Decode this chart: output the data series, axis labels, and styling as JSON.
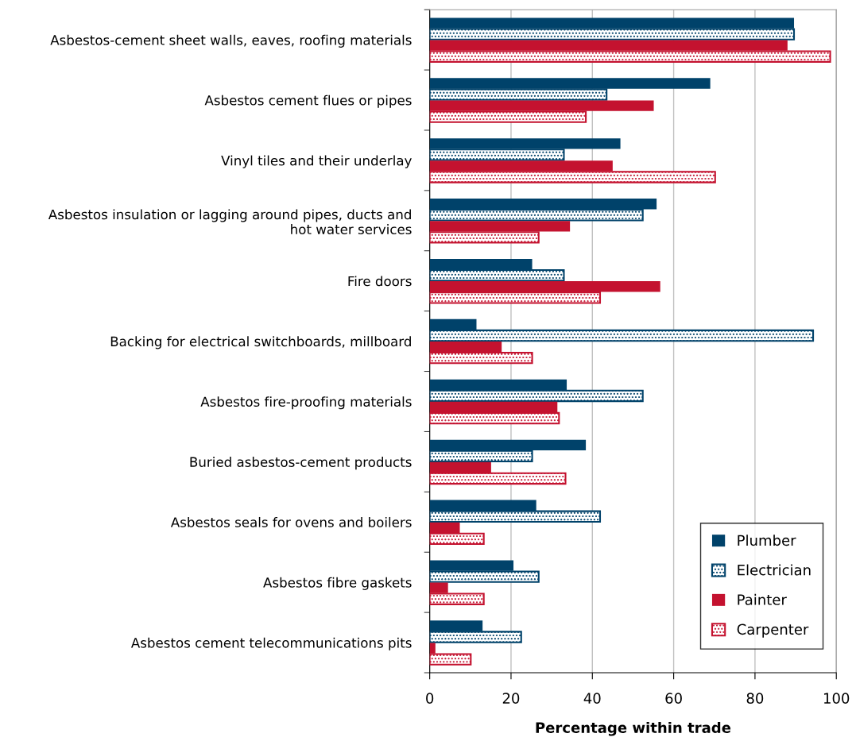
{
  "chart_data": {
    "type": "bar",
    "orientation": "horizontal",
    "xlabel": "Percentage within trade",
    "categories": [
      "Asbestos-cement sheet walls, eaves, roofing materials",
      "Asbestos cement flues or pipes",
      "Vinyl tiles and their underlay",
      "Asbestos insulation or lagging around pipes, ducts and\nhot water services",
      "Fire doors",
      "Backing for electrical switchboards, millboard",
      "Asbestos fire-proofing materials",
      "Buried asbestos-cement products",
      "Asbestos seals for ovens and boilers",
      "Asbestos fibre gaskets",
      "Asbestos cement telecommunications pits"
    ],
    "series": [
      {
        "name": "Plumber",
        "color": "#00426a",
        "values": [
          89.6,
          69.0,
          46.9,
          55.8,
          25.2,
          11.5,
          33.7,
          38.4,
          26.2,
          20.6,
          13.0
        ]
      },
      {
        "name": "Electrician",
        "color": "#00426a",
        "values": [
          89.6,
          43.5,
          33.0,
          52.4,
          33.0,
          94.3,
          52.4,
          25.2,
          41.9,
          26.8,
          22.5
        ]
      },
      {
        "name": "Painter",
        "color": "#c4122f",
        "values": [
          88.0,
          55.1,
          45.0,
          34.5,
          56.7,
          17.7,
          31.4,
          15.1,
          7.4,
          4.5,
          1.4
        ]
      },
      {
        "name": "Carpenter",
        "color": "#c4122f",
        "values": [
          98.5,
          38.4,
          70.2,
          26.8,
          41.9,
          25.2,
          31.8,
          33.4,
          13.3,
          13.3,
          10.1
        ]
      }
    ],
    "xlim": [
      0,
      100
    ],
    "xticks": [
      0,
      20,
      40,
      60,
      80,
      100
    ],
    "grid": "x",
    "legend": "bottom right"
  }
}
